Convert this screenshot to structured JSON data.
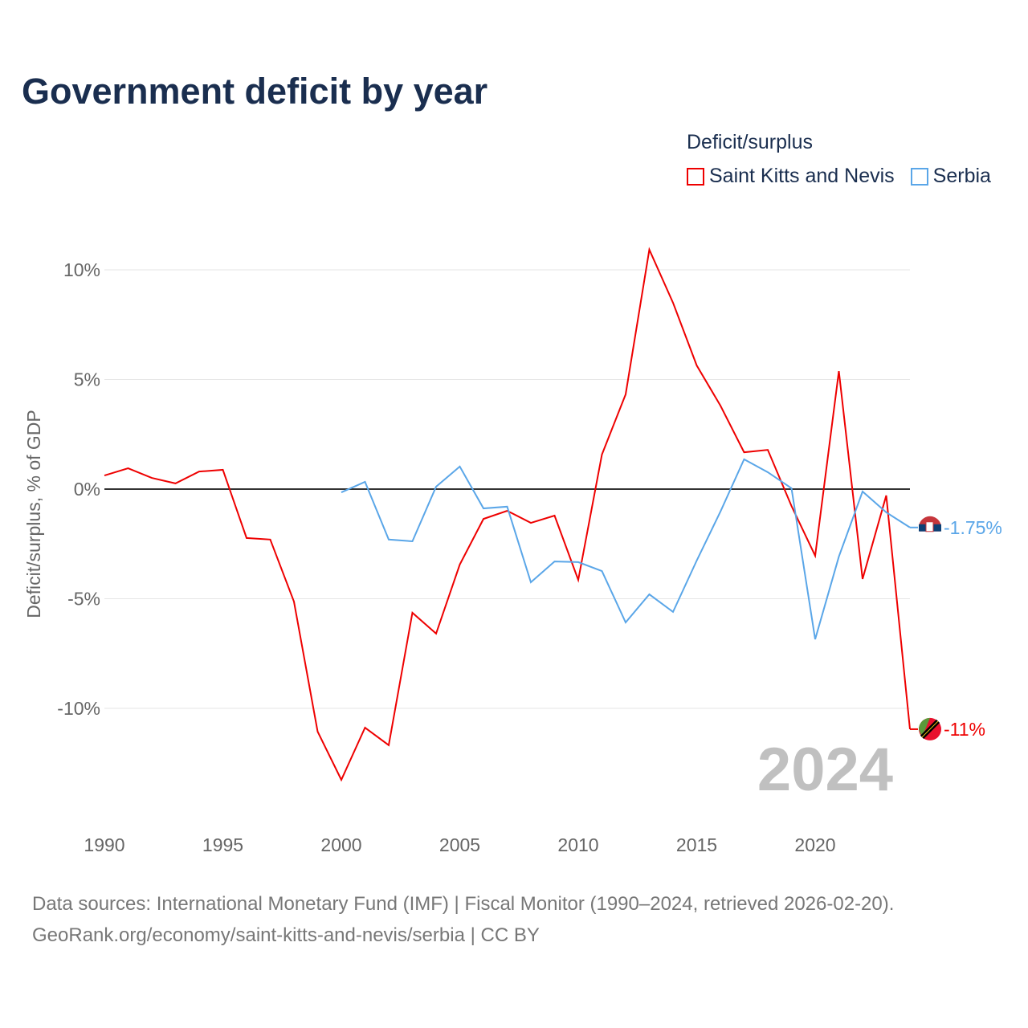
{
  "title": "Government deficit by year",
  "legend": {
    "title": "Deficit/surplus"
  },
  "source_lines": [
    "Data sources: International Monetary Fund (IMF) | Fiscal Monitor (1990–2024, retrieved 2026-02-20).",
    "GeoRank.org/economy/saint-kitts-and-nevis/serbia | CC BY"
  ],
  "year_watermark": "2024",
  "chart_data": {
    "type": "line",
    "title": "Government deficit by year",
    "xlabel": "",
    "ylabel": "Deficit/surplus, % of GDP",
    "xlim": [
      1990,
      2024
    ],
    "ylim": [
      -14.5,
      11.5
    ],
    "x_ticks": [
      1990,
      1995,
      2000,
      2005,
      2010,
      2015,
      2020
    ],
    "x_tick_labels": [
      "1990",
      "1995",
      "2000",
      "2005",
      "2010",
      "2015",
      "2020"
    ],
    "y_ticks": [
      10,
      5,
      0,
      -5,
      -10
    ],
    "y_tick_labels": [
      "10%",
      "5%",
      "0%",
      "-5%",
      "-10%"
    ],
    "grid": true,
    "legend_position": "top-right",
    "series": [
      {
        "name": "Saint Kitts and Nevis",
        "color": "#ee0000",
        "end_label": "-11%",
        "start_year": 1990,
        "values": [
          0.62,
          0.95,
          0.51,
          0.26,
          0.8,
          0.88,
          -2.23,
          -2.3,
          -5.13,
          -11.06,
          -13.26,
          -10.88,
          -11.68,
          -5.64,
          -6.59,
          -3.44,
          -1.36,
          -0.99,
          -1.54,
          -1.21,
          -4.14,
          1.58,
          4.32,
          10.92,
          8.5,
          5.64,
          3.81,
          1.68,
          1.79,
          -0.77,
          -3.04,
          5.38,
          -4.1,
          -0.29,
          -10.95
        ]
      },
      {
        "name": "Serbia",
        "color": "#5aa6e8",
        "end_label": "-1.75%",
        "start_year": 2000,
        "values": [
          -0.15,
          0.33,
          -2.3,
          -2.38,
          0.11,
          1.03,
          -0.88,
          -0.8,
          -4.25,
          -3.3,
          -3.33,
          -3.74,
          -6.08,
          -4.8,
          -5.6,
          -3.26,
          -1.03,
          1.36,
          0.77,
          0.04,
          -6.85,
          -3.08,
          -0.11,
          -1.06,
          -1.75
        ]
      }
    ]
  }
}
